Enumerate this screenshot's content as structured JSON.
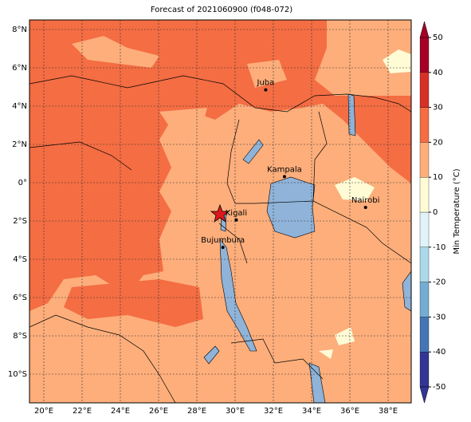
{
  "title": "Forecast of 2021060900 (f048-072)",
  "lon_ticks": [
    {
      "value": 20,
      "label": "20°E"
    },
    {
      "value": 22,
      "label": "22°E"
    },
    {
      "value": 24,
      "label": "24°E"
    },
    {
      "value": 26,
      "label": "26°E"
    },
    {
      "value": 28,
      "label": "28°E"
    },
    {
      "value": 30,
      "label": "30°E"
    },
    {
      "value": 32,
      "label": "32°E"
    },
    {
      "value": 34,
      "label": "34°E"
    },
    {
      "value": 36,
      "label": "36°E"
    },
    {
      "value": 38,
      "label": "38°E"
    }
  ],
  "lat_ticks": [
    {
      "value": 8,
      "label": "8°N"
    },
    {
      "value": 6,
      "label": "6°N"
    },
    {
      "value": 4,
      "label": "4°N"
    },
    {
      "value": 2,
      "label": "2°N"
    },
    {
      "value": 0,
      "label": "0°"
    },
    {
      "value": -2,
      "label": "2°S"
    },
    {
      "value": -4,
      "label": "4°S"
    },
    {
      "value": -6,
      "label": "6°S"
    },
    {
      "value": -8,
      "label": "8°S"
    },
    {
      "value": -10,
      "label": "10°S"
    }
  ],
  "cities": [
    {
      "name": "Juba",
      "lon": 31.6,
      "lat": 4.85
    },
    {
      "name": "Kampala",
      "lon": 32.58,
      "lat": 0.32
    },
    {
      "name": "Nairobi",
      "lon": 36.82,
      "lat": -1.29
    },
    {
      "name": "Kigali",
      "lon": 30.06,
      "lat": -1.95
    },
    {
      "name": "Bujumbura",
      "lon": 29.36,
      "lat": -3.38
    }
  ],
  "colorbar": {
    "label": "Min Temperature (°C)",
    "ticks": [
      -50,
      -40,
      -30,
      -20,
      -10,
      0,
      10,
      20,
      30,
      40,
      50
    ],
    "colors": [
      "#313695",
      "#4575b4",
      "#74add1",
      "#abd9e9",
      "#e0f3f8",
      "#fffbd5",
      "#fdae7b",
      "#f46d43",
      "#d73027",
      "#a50026"
    ]
  }
}
